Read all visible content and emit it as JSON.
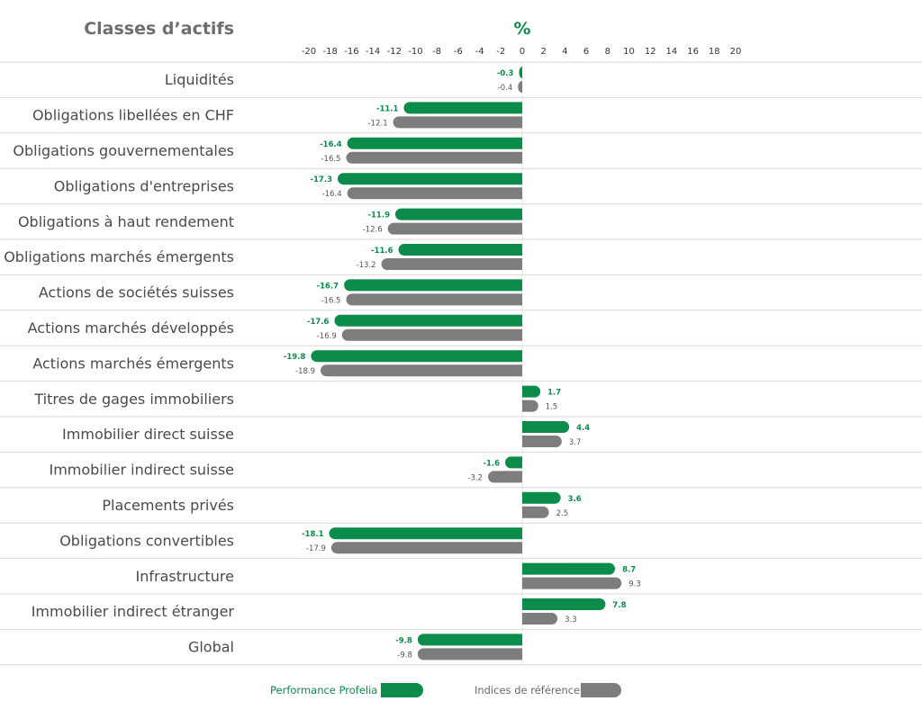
{
  "chart_data": {
    "type": "bar",
    "orientation": "horizontal",
    "title": "Classes d’actifs",
    "unit": "%",
    "xlim": [
      -20,
      20
    ],
    "xticks": [
      -20,
      -18,
      -16,
      -14,
      -12,
      -10,
      -8,
      -6,
      -4,
      -2,
      0,
      2,
      4,
      6,
      8,
      10,
      12,
      14,
      16,
      18,
      20
    ],
    "categories": [
      "Liquidités",
      "Obligations libellées en CHF",
      "Obligations gouvernementales",
      "Obligations d'entreprises",
      "Obligations à haut rendement",
      "Obligations marchés émergents",
      "Actions de sociétés suisses",
      "Actions marchés développés",
      "Actions marchés émergents",
      "Titres de gages immobiliers",
      "Immobilier direct suisse",
      "Immobilier indirect suisse",
      "Placements privés",
      "Obligations convertibles",
      "Infrastructure",
      "Immobilier indirect étranger",
      "Global"
    ],
    "series": [
      {
        "name": "Performance Profelia",
        "color": "#0b8c4a",
        "values": [
          -0.3,
          -11.1,
          -16.4,
          -17.3,
          -11.9,
          -11.6,
          -16.7,
          -17.6,
          -19.8,
          1.7,
          4.4,
          -1.6,
          3.6,
          -18.1,
          8.7,
          7.8,
          -9.8
        ]
      },
      {
        "name": "Indices de référence",
        "color": "#7d7d7d",
        "values": [
          -0.4,
          -12.1,
          -16.5,
          -16.4,
          -12.6,
          -13.2,
          -16.5,
          -16.9,
          -18.9,
          1.5,
          3.7,
          -3.2,
          2.5,
          -17.9,
          9.3,
          3.3,
          -9.8
        ]
      }
    ],
    "grid": "horizontal row separators",
    "legend": "bottom-center"
  }
}
